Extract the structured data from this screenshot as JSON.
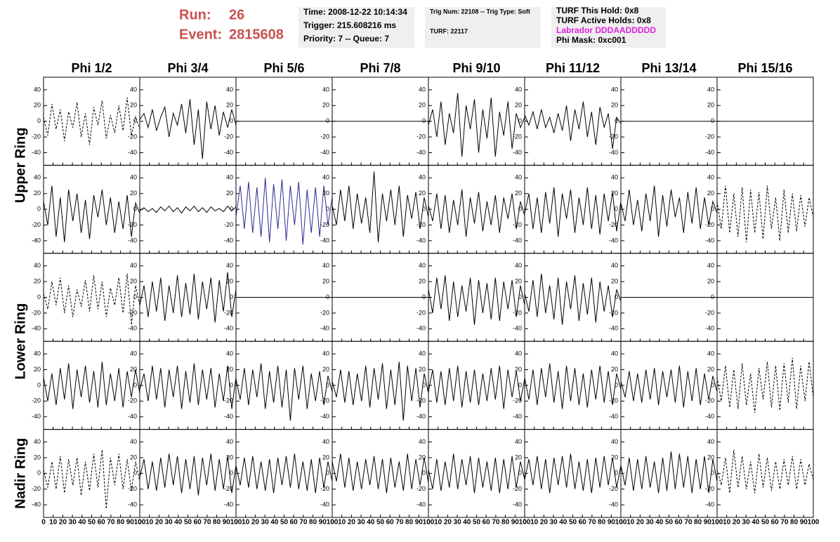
{
  "header": {
    "run_label": "Run:",
    "run": "26",
    "event_label": "Event:",
    "event": "2815608"
  },
  "info_boxes": [
    {
      "lines": [
        "Time: 2008-12-22 10:14:34",
        "Trigger: 215.608216 ms",
        "Priority: 7 -- Queue: 7"
      ]
    },
    {
      "lines": [
        "Trig Num: 22108 -- Trig Type: Soft",
        "TURF: 22117"
      ]
    },
    {
      "lines": [
        "TURF This Hold: 0x8",
        "TURF Active Holds: 0x8",
        "Labrador DDDAADDDDD",
        "Phi Mask: 0xc001"
      ]
    }
  ],
  "chart_data": {
    "type": "line",
    "columns": [
      "Phi 1/2",
      "Phi 3/4",
      "Phi 5/6",
      "Phi 7/8",
      "Phi 9/10",
      "Phi 11/12",
      "Phi 13/14",
      "Phi 15/16"
    ],
    "ring_labels": [
      "Upper Ring",
      "Lower Ring",
      "Nadir Ring"
    ],
    "xlim": [
      0,
      100
    ],
    "ylim": [
      -56,
      56
    ],
    "xticks": [
      0,
      10,
      20,
      30,
      40,
      50,
      60,
      70,
      80,
      90,
      100
    ],
    "yticks": [
      -40,
      -20,
      0,
      20,
      40
    ],
    "grid": false,
    "rows": [
      [
        {
          "style": "dashed",
          "color": "#000000",
          "values": [
            5,
            -18,
            22,
            -10,
            15,
            -25,
            12,
            -8,
            24,
            -20,
            10,
            -30,
            18,
            -5,
            26,
            -22,
            8,
            -15,
            20,
            -12,
            30,
            -18,
            6,
            -10
          ]
        },
        {
          "style": "solid",
          "color": "#000000",
          "values": [
            2,
            10,
            -8,
            15,
            -12,
            5,
            18,
            -20,
            10,
            -5,
            22,
            -15,
            28,
            -30,
            15,
            -48,
            25,
            -10,
            20,
            -18,
            12,
            -8,
            15,
            -5
          ]
        },
        {
          "style": "solid",
          "color": "#000000",
          "values": [
            0,
            0
          ]
        },
        {
          "style": "solid",
          "color": "#000000",
          "values": [
            0,
            0
          ]
        },
        {
          "style": "solid",
          "color": "#000000",
          "values": [
            -5,
            15,
            -20,
            25,
            -30,
            10,
            -15,
            36,
            -45,
            20,
            -10,
            28,
            -40,
            15,
            -22,
            30,
            -45,
            12,
            -18,
            25,
            -35,
            10,
            -8,
            5
          ]
        },
        {
          "style": "solid",
          "color": "#000000",
          "values": [
            8,
            -5,
            12,
            -10,
            15,
            -8,
            5,
            -15,
            10,
            -12,
            20,
            -25,
            15,
            -10,
            25,
            -20,
            12,
            -30,
            18,
            -8,
            10,
            -35,
            5,
            -3
          ]
        },
        {
          "style": "solid",
          "color": "#000000",
          "values": [
            0,
            0
          ]
        },
        {
          "style": "solid",
          "color": "#000000",
          "values": [
            0,
            0
          ]
        }
      ],
      [
        {
          "style": "solid",
          "color": "#000000",
          "values": [
            10,
            -20,
            30,
            -35,
            15,
            -42,
            25,
            -15,
            20,
            -30,
            12,
            -38,
            18,
            -10,
            25,
            -20,
            15,
            -30,
            10,
            -25,
            18,
            -35,
            8,
            -5
          ]
        },
        {
          "style": "solid",
          "color": "#000000",
          "values": [
            -2,
            2,
            -3,
            1,
            -4,
            3,
            -2,
            4,
            -3,
            2,
            -5,
            3,
            -2,
            4,
            -3,
            2,
            -4,
            3,
            -2,
            1,
            -3,
            4,
            -2,
            3
          ]
        },
        {
          "style": "solid",
          "color": "#2b2b8f",
          "values": [
            -10,
            30,
            -25,
            35,
            -30,
            28,
            -35,
            40,
            -42,
            32,
            -25,
            38,
            -40,
            30,
            -20,
            35,
            -45,
            25,
            -30,
            28,
            -35,
            30,
            -20,
            15
          ]
        },
        {
          "style": "solid",
          "color": "#000000",
          "values": [
            5,
            -20,
            25,
            -15,
            30,
            -25,
            20,
            -18,
            15,
            -30,
            48,
            -42,
            20,
            -15,
            25,
            -20,
            30,
            -35,
            18,
            -12,
            22,
            -25,
            15,
            -10
          ]
        },
        {
          "style": "solid",
          "color": "#000000",
          "values": [
            5,
            -15,
            20,
            -25,
            18,
            -30,
            12,
            -20,
            25,
            -35,
            15,
            -18,
            22,
            -28,
            10,
            -20,
            18,
            -30,
            15,
            -12,
            20,
            -25,
            10,
            -8
          ]
        },
        {
          "style": "solid",
          "color": "#000000",
          "values": [
            -5,
            20,
            -25,
            15,
            -30,
            22,
            -18,
            28,
            -35,
            20,
            -12,
            25,
            -30,
            15,
            -20,
            28,
            -25,
            18,
            -32,
            20,
            -15,
            22,
            -28,
            10
          ]
        },
        {
          "style": "solid",
          "color": "#000000",
          "values": [
            8,
            -15,
            25,
            -20,
            12,
            -28,
            20,
            -15,
            30,
            -35,
            18,
            -22,
            25,
            -10,
            15,
            -30,
            22,
            -18,
            28,
            -25,
            15,
            -20,
            10,
            -5
          ]
        },
        {
          "style": "dashed",
          "color": "#000000",
          "values": [
            10,
            -25,
            30,
            -30,
            20,
            -35,
            28,
            -42,
            25,
            -30,
            22,
            -38,
            30,
            -25,
            15,
            -40,
            25,
            -30,
            20,
            -28,
            18,
            -22,
            15,
            -10
          ]
        }
      ],
      [
        {
          "style": "dashed",
          "color": "#000000",
          "values": [
            5,
            -15,
            20,
            -10,
            25,
            -20,
            15,
            -25,
            10,
            -12,
            22,
            -18,
            28,
            -15,
            20,
            -25,
            12,
            -10,
            25,
            -20,
            30,
            -35,
            15,
            -10
          ]
        },
        {
          "style": "solid",
          "color": "#000000",
          "values": [
            -10,
            15,
            -25,
            20,
            -18,
            25,
            -30,
            15,
            -20,
            28,
            -25,
            18,
            -22,
            30,
            -28,
            20,
            -15,
            25,
            -32,
            22,
            -18,
            32,
            -25,
            10
          ]
        },
        {
          "style": "solid",
          "color": "#000000",
          "values": [
            0,
            0
          ]
        },
        {
          "style": "solid",
          "color": "#000000",
          "values": [
            0,
            0
          ]
        },
        {
          "style": "solid",
          "color": "#000000",
          "values": [
            10,
            -20,
            25,
            -15,
            28,
            -30,
            20,
            -25,
            15,
            -18,
            25,
            -35,
            22,
            -20,
            18,
            -28,
            25,
            -30,
            20,
            -15,
            22,
            -25,
            15,
            -10
          ]
        },
        {
          "style": "solid",
          "color": "#000000",
          "values": [
            5,
            -18,
            22,
            -25,
            30,
            -20,
            15,
            -28,
            25,
            -35,
            20,
            -15,
            28,
            -30,
            18,
            -22,
            25,
            -32,
            20,
            -18,
            15,
            -25,
            10,
            -5
          ]
        },
        {
          "style": "solid",
          "color": "#000000",
          "values": [
            0,
            0
          ]
        },
        {
          "style": "solid",
          "color": "#000000",
          "values": [
            0,
            0
          ]
        }
      ],
      [
        {
          "style": "solid",
          "color": "#000000",
          "values": [
            10,
            -20,
            15,
            -25,
            22,
            -18,
            28,
            -30,
            20,
            -15,
            25,
            -22,
            18,
            -28,
            30,
            -25,
            15,
            -20,
            22,
            -28,
            18,
            -15,
            20,
            -10
          ]
        },
        {
          "style": "solid",
          "color": "#000000",
          "values": [
            -5,
            15,
            -20,
            25,
            -18,
            22,
            -28,
            20,
            -15,
            25,
            -30,
            18,
            -22,
            28,
            -25,
            20,
            -18,
            22,
            -28,
            15,
            -20,
            25,
            -30,
            10
          ]
        },
        {
          "style": "solid",
          "color": "#000000",
          "values": [
            8,
            -18,
            22,
            -25,
            20,
            -15,
            28,
            -30,
            18,
            -22,
            25,
            -28,
            20,
            -45,
            22,
            -18,
            25,
            -30,
            15,
            -20,
            18,
            -25,
            12,
            -8
          ]
        },
        {
          "style": "solid",
          "color": "#000000",
          "values": [
            5,
            -15,
            20,
            -22,
            18,
            -25,
            15,
            -20,
            25,
            -28,
            22,
            -18,
            28,
            -30,
            20,
            -25,
            30,
            -45,
            25,
            -20,
            22,
            -28,
            15,
            -10
          ]
        },
        {
          "style": "solid",
          "color": "#000000",
          "values": [
            -8,
            20,
            -22,
            18,
            -25,
            22,
            -20,
            25,
            -28,
            18,
            -22,
            20,
            -25,
            15,
            -20,
            22,
            -18,
            25,
            -30,
            20,
            -15,
            18,
            -20,
            8
          ]
        },
        {
          "style": "solid",
          "color": "#000000",
          "values": [
            10,
            -18,
            20,
            -25,
            22,
            -15,
            28,
            -22,
            18,
            -30,
            25,
            -20,
            22,
            -25,
            15,
            -28,
            20,
            -18,
            25,
            -22,
            18,
            -25,
            15,
            -5
          ]
        },
        {
          "style": "solid",
          "color": "#000000",
          "values": [
            5,
            -15,
            18,
            -20,
            15,
            -22,
            20,
            -18,
            22,
            -25,
            18,
            -15,
            20,
            -22,
            25,
            -28,
            18,
            -20,
            22,
            -25,
            15,
            -18,
            12,
            -8
          ]
        },
        {
          "style": "dashed",
          "color": "#000000",
          "values": [
            10,
            -20,
            25,
            -28,
            20,
            -30,
            28,
            -25,
            15,
            -35,
            22,
            -18,
            30,
            -28,
            25,
            -32,
            28,
            -22,
            35,
            -30,
            25,
            -20,
            30,
            -15
          ]
        }
      ],
      [
        {
          "style": "dashed",
          "color": "#000000",
          "values": [
            5,
            -18,
            15,
            -20,
            22,
            -25,
            18,
            -15,
            20,
            -28,
            15,
            -22,
            25,
            -18,
            30,
            -45,
            20,
            -15,
            25,
            -20,
            18,
            -22,
            15,
            -10
          ]
        },
        {
          "style": "solid",
          "color": "#000000",
          "values": [
            -5,
            18,
            -20,
            15,
            -22,
            20,
            -18,
            25,
            -15,
            22,
            -25,
            18,
            -20,
            22,
            -28,
            20,
            -15,
            25,
            -22,
            18,
            -20,
            22,
            -25,
            10
          ]
        },
        {
          "style": "solid",
          "color": "#000000",
          "values": [
            10,
            -15,
            20,
            -18,
            22,
            -20,
            15,
            -22,
            18,
            -25,
            20,
            -15,
            22,
            -18,
            25,
            -20,
            15,
            -22,
            18,
            -25,
            20,
            -18,
            15,
            -10
          ]
        },
        {
          "style": "solid",
          "color": "#000000",
          "values": [
            15,
            -10,
            25,
            -18,
            20,
            -22,
            15,
            -20,
            18,
            -15,
            22,
            -20,
            18,
            -25,
            20,
            -18,
            15,
            -22,
            25,
            -20,
            18,
            -15,
            20,
            -12
          ]
        },
        {
          "style": "solid",
          "color": "#000000",
          "values": [
            5,
            -20,
            18,
            -22,
            15,
            -18,
            25,
            -20,
            18,
            -15,
            22,
            -25,
            20,
            -18,
            15,
            -22,
            20,
            -25,
            18,
            -20,
            22,
            -18,
            15,
            -8
          ]
        },
        {
          "style": "solid",
          "color": "#000000",
          "values": [
            -8,
            18,
            -15,
            22,
            -20,
            18,
            -25,
            20,
            -15,
            22,
            -18,
            25,
            -20,
            15,
            -22,
            18,
            -25,
            20,
            -18,
            22,
            -15,
            20,
            -18,
            10
          ]
        },
        {
          "style": "solid",
          "color": "#000000",
          "values": [
            10,
            -15,
            20,
            -22,
            18,
            -20,
            22,
            -18,
            15,
            -25,
            20,
            -22,
            28,
            -20,
            25,
            -18,
            22,
            -25,
            18,
            -20,
            22,
            -25,
            18,
            -10
          ]
        },
        {
          "style": "dashed",
          "color": "#000000",
          "values": [
            5,
            -15,
            20,
            -25,
            30,
            -18,
            22,
            -20,
            15,
            -25,
            25,
            -18,
            20,
            -22,
            15,
            -20,
            18,
            -15,
            22,
            -20,
            18,
            -15,
            12,
            -8
          ]
        }
      ]
    ]
  }
}
